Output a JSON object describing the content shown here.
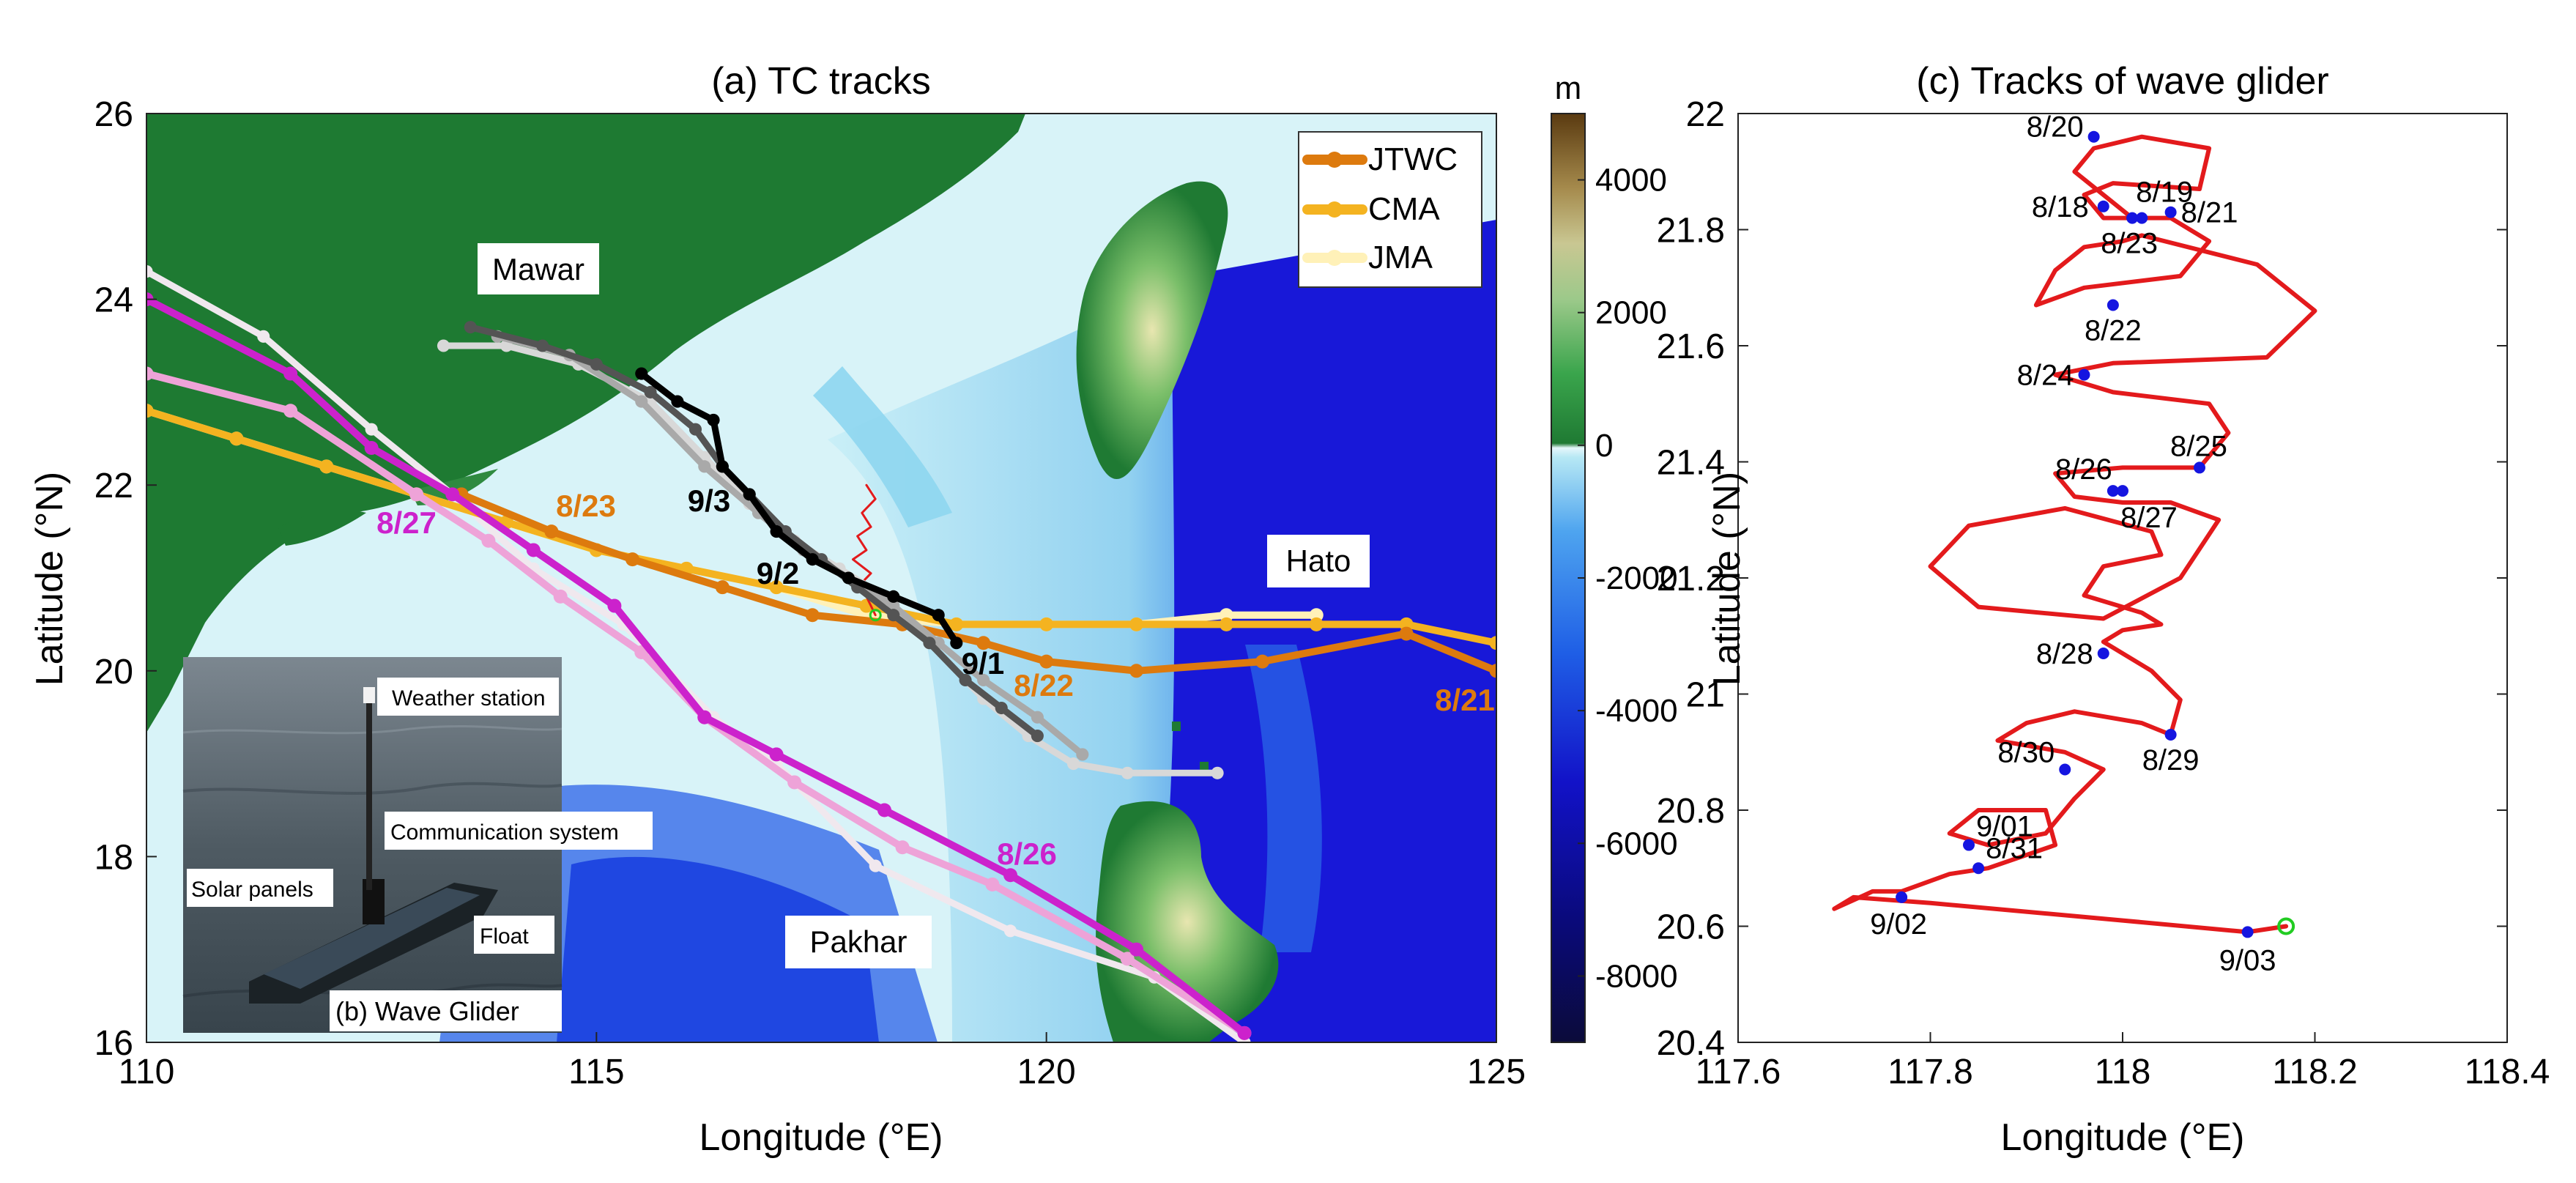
{
  "colors": {
    "jtwc": "#dd7a0e",
    "cma": "#f4b320",
    "jma": "#fff1b8",
    "mawar_jma": "#d8d8d8",
    "mawar_cma": "#a9a9a9",
    "mawar_jtwc": "#545454",
    "mawar_seg": "#000000",
    "pakhar_jtwc": "#cc22cc",
    "pakhar_cma": "#eea3d8",
    "pakhar_jma": "#f0e8ee",
    "glider": "#e31a1c",
    "day_dot": "#1515e0",
    "end_marker": "#22cc22",
    "land_dark": "#1e7a32",
    "shelf": "#d8f3f8",
    "deep": "#1414d0"
  },
  "chart_data": [
    {
      "type": "line",
      "panel_label": "(a) TC tracks",
      "xlabel": "Longitude (°E)",
      "ylabel": "Latitude (°N)",
      "xlim": [
        110,
        125
      ],
      "ylim": [
        16,
        26
      ],
      "xticks": [
        110,
        115,
        120,
        125
      ],
      "yticks": [
        16,
        18,
        20,
        22,
        24,
        26
      ],
      "background": "bathymetry/topography map",
      "legend": {
        "position": "top-right",
        "entries": [
          "JTWC",
          "CMA",
          "JMA"
        ]
      },
      "storm_labels": [
        "Mawar",
        "Hato",
        "Pakhar"
      ],
      "series": [
        {
          "storm": "Hato",
          "source": "JTWC",
          "x": [
            125.0,
            124.0,
            122.4,
            121.0,
            120.0,
            119.3,
            118.4,
            117.4,
            116.4,
            115.4,
            114.5,
            113.5
          ],
          "y": [
            20.0,
            20.4,
            20.1,
            20.0,
            20.1,
            20.3,
            20.5,
            20.6,
            20.9,
            21.2,
            21.5,
            21.9
          ]
        },
        {
          "storm": "Hato",
          "source": "CMA",
          "x": [
            125.0,
            124.0,
            123.0,
            122.0,
            121.0,
            120.0,
            119.0,
            118.0,
            117.0,
            116.0,
            115.0,
            114.0,
            113.0,
            112.0,
            111.0,
            110.0
          ],
          "y": [
            20.3,
            20.5,
            20.5,
            20.5,
            20.5,
            20.5,
            20.5,
            20.7,
            20.9,
            21.1,
            21.3,
            21.6,
            21.9,
            22.2,
            22.5,
            22.8
          ]
        },
        {
          "storm": "Hato",
          "source": "JMA",
          "x": [
            123.0,
            122.0,
            121.0,
            120.0,
            119.0,
            118.0,
            117.0,
            116.0,
            115.0,
            114.0,
            113.0,
            112.0,
            111.0,
            110.0
          ],
          "y": [
            20.6,
            20.6,
            20.5,
            20.5,
            20.5,
            20.6,
            20.9,
            21.1,
            21.3,
            21.6,
            21.9,
            22.2,
            22.5,
            22.8
          ]
        },
        {
          "storm": "Mawar",
          "source": "JMA",
          "x": [
            121.9,
            120.9,
            120.3,
            119.8,
            119.3,
            118.7,
            118.2,
            117.7,
            117.2,
            116.7,
            116.2,
            115.6,
            114.8,
            114.0,
            113.3
          ],
          "y": [
            18.9,
            18.9,
            19.0,
            19.3,
            19.7,
            20.3,
            20.8,
            21.1,
            21.4,
            21.8,
            22.3,
            22.9,
            23.3,
            23.5,
            23.5
          ]
        },
        {
          "storm": "Mawar",
          "source": "CMA",
          "x": [
            120.4,
            119.9,
            119.3,
            118.8,
            118.3,
            117.8,
            117.3,
            116.8,
            116.2,
            115.5,
            114.7,
            113.9
          ],
          "y": [
            19.1,
            19.5,
            19.9,
            20.3,
            20.7,
            21.0,
            21.3,
            21.7,
            22.2,
            22.9,
            23.4,
            23.6
          ]
        },
        {
          "storm": "Mawar",
          "source": "JTWC",
          "x": [
            119.9,
            119.5,
            119.1,
            118.7,
            118.3,
            117.9,
            117.5,
            117.1,
            116.7,
            116.4,
            116.1,
            115.6,
            115.0,
            114.4,
            113.6
          ],
          "y": [
            19.3,
            19.6,
            19.9,
            20.3,
            20.6,
            20.9,
            21.2,
            21.5,
            21.9,
            22.2,
            22.6,
            23.0,
            23.3,
            23.5,
            23.7
          ]
        },
        {
          "storm": "Mawar",
          "source": "JTWC-segment",
          "x": [
            119.0,
            118.8,
            118.3,
            117.8,
            117.4,
            117.0,
            116.7,
            116.4,
            116.3,
            115.9,
            115.5
          ],
          "y": [
            20.3,
            20.6,
            20.8,
            21.0,
            21.2,
            21.5,
            21.9,
            22.2,
            22.7,
            22.9,
            23.2
          ]
        },
        {
          "storm": "Pakhar",
          "source": "JTWC",
          "x": [
            122.2,
            121.0,
            119.6,
            118.2,
            117.0,
            116.2,
            115.2,
            114.3,
            113.4,
            112.5,
            111.6,
            110.0
          ],
          "y": [
            16.1,
            17.0,
            17.8,
            18.5,
            19.1,
            19.5,
            20.7,
            21.3,
            21.9,
            22.4,
            23.2,
            24.0
          ]
        },
        {
          "storm": "Pakhar",
          "source": "CMA",
          "x": [
            122.2,
            120.9,
            119.4,
            118.4,
            117.2,
            116.2,
            115.5,
            114.6,
            113.8,
            113.0,
            111.6,
            110.0
          ],
          "y": [
            16.1,
            16.9,
            17.7,
            18.1,
            18.8,
            19.5,
            20.2,
            20.8,
            21.4,
            21.9,
            22.8,
            23.2
          ]
        },
        {
          "storm": "Pakhar",
          "source": "JMA",
          "x": [
            122.2,
            121.2,
            119.6,
            118.1,
            117.0,
            116.3,
            115.3,
            114.3,
            113.4,
            112.5,
            111.3,
            110.0
          ],
          "y": [
            16.0,
            16.7,
            17.2,
            17.9,
            19.0,
            19.5,
            20.5,
            21.1,
            21.9,
            22.6,
            23.6,
            24.3
          ]
        },
        {
          "source": "wave-glider-inset",
          "x": [
            118.1,
            118.0,
            117.9,
            118.05,
            117.85,
            118.0,
            117.9,
            118.05,
            117.95,
            118.1,
            118.0
          ],
          "y": [
            20.6,
            20.8,
            20.9,
            21.05,
            21.2,
            21.3,
            21.45,
            21.55,
            21.7,
            21.85,
            22.0
          ]
        }
      ],
      "date_labels": [
        {
          "text": "8/23",
          "x": 115.1,
          "y": 21.8
        },
        {
          "text": "8/22",
          "x": 120.5,
          "y": 19.9
        },
        {
          "text": "8/21",
          "x": 124.6,
          "y": 19.7
        },
        {
          "text": "8/27",
          "x": 112.6,
          "y": 21.5
        },
        {
          "text": "8/26",
          "x": 120.2,
          "y": 18.0
        },
        {
          "text": "9/3",
          "x": 116.3,
          "y": 21.75
        },
        {
          "text": "9/2",
          "x": 117.1,
          "y": 20.85
        },
        {
          "text": "9/1",
          "x": 118.95,
          "y": 20.2
        }
      ],
      "colorbar": {
        "unit": "m",
        "min": -9000,
        "max": 5000,
        "ticks": [
          4000,
          2000,
          0,
          -2000,
          -4000,
          -6000,
          -8000
        ]
      },
      "inset": {
        "caption": "(b) Wave Glider",
        "labels": [
          "Weather station",
          "Communication system",
          "Solar panels",
          "Float"
        ]
      }
    },
    {
      "type": "line",
      "panel_label": "(c) Tracks of wave glider",
      "xlabel": "Longitude (°E)",
      "ylabel": "Latitude (°N)",
      "xlim": [
        117.6,
        118.4
      ],
      "ylim": [
        20.4,
        22.0
      ],
      "xticks": [
        117.6,
        117.8,
        118,
        118.2,
        118.4
      ],
      "yticks": [
        20.4,
        20.6,
        20.8,
        21,
        21.2,
        21.4,
        21.6,
        21.8,
        22
      ],
      "track": {
        "x": [
          118.17,
          118.13,
          118.0,
          117.8,
          117.72,
          117.7,
          117.74,
          117.77,
          117.82,
          117.86,
          117.93,
          117.92,
          117.85,
          117.82,
          117.86,
          117.92,
          117.95,
          117.98,
          117.94,
          117.87,
          117.9,
          117.95,
          118.02,
          118.05,
          118.06,
          118.03,
          117.99,
          117.98,
          118.0,
          118.04,
          118.02,
          117.96,
          117.98,
          118.04,
          118.03,
          117.94,
          117.84,
          117.8,
          117.85,
          117.98,
          118.06,
          118.1,
          118.05,
          118.0,
          117.95,
          117.93,
          118.0,
          118.08,
          118.11,
          118.09,
          117.99,
          117.93,
          117.99,
          118.15,
          118.2,
          118.14,
          118.02,
          118.0,
          117.96,
          117.93,
          117.91,
          117.96,
          118.06,
          118.09,
          118.05,
          117.98,
          117.96,
          117.99,
          118.08,
          118.09,
          118.02,
          117.97,
          117.95,
          117.98,
          118.01
        ],
        "y": [
          20.6,
          20.59,
          20.61,
          20.64,
          20.65,
          20.63,
          20.66,
          20.66,
          20.69,
          20.7,
          20.74,
          20.8,
          20.8,
          20.76,
          20.74,
          20.76,
          20.82,
          20.87,
          20.9,
          20.92,
          20.95,
          20.97,
          20.95,
          20.93,
          20.99,
          21.04,
          21.08,
          21.09,
          21.11,
          21.12,
          21.14,
          21.17,
          21.22,
          21.24,
          21.28,
          21.32,
          21.29,
          21.22,
          21.15,
          21.13,
          21.2,
          21.3,
          21.33,
          21.33,
          21.34,
          21.38,
          21.39,
          21.39,
          21.45,
          21.5,
          21.52,
          21.55,
          21.57,
          21.58,
          21.66,
          21.74,
          21.79,
          21.78,
          21.77,
          21.73,
          21.67,
          21.7,
          21.72,
          21.78,
          21.82,
          21.82,
          21.86,
          21.88,
          21.87,
          21.94,
          21.96,
          21.94,
          21.9,
          21.86,
          21.82
        ]
      },
      "day_points": [
        {
          "label": "8/20",
          "x": 117.97,
          "y": 21.96
        },
        {
          "label": "8/19",
          "x": 118.02,
          "y": 21.82
        },
        {
          "label": "8/18",
          "x": 117.98,
          "y": 21.84
        },
        {
          "label": "8/21",
          "x": 118.05,
          "y": 21.83
        },
        {
          "label": "8/23",
          "x": 118.01,
          "y": 21.82
        },
        {
          "label": "8/22",
          "x": 117.99,
          "y": 21.67
        },
        {
          "label": "8/24",
          "x": 117.96,
          "y": 21.55
        },
        {
          "label": "8/25",
          "x": 118.08,
          "y": 21.39
        },
        {
          "label": "8/26",
          "x": 117.99,
          "y": 21.35
        },
        {
          "label": "8/27",
          "x": 118.0,
          "y": 21.35
        },
        {
          "label": "8/28",
          "x": 117.98,
          "y": 21.07
        },
        {
          "label": "8/29",
          "x": 118.05,
          "y": 20.93
        },
        {
          "label": "8/30",
          "x": 117.94,
          "y": 20.87
        },
        {
          "label": "9/01",
          "x": 117.84,
          "y": 20.74
        },
        {
          "label": "8/31",
          "x": 117.85,
          "y": 20.7
        },
        {
          "label": "9/02",
          "x": 117.77,
          "y": 20.65
        },
        {
          "label": "9/03",
          "x": 118.13,
          "y": 20.59
        }
      ],
      "end_marker": {
        "x": 118.17,
        "y": 20.6
      }
    }
  ]
}
